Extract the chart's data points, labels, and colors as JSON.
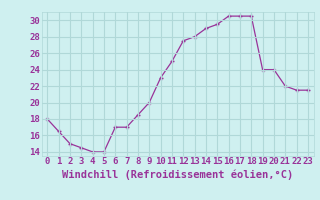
{
  "x": [
    0,
    1,
    2,
    3,
    4,
    5,
    6,
    7,
    8,
    9,
    10,
    11,
    12,
    13,
    14,
    15,
    16,
    17,
    18,
    19,
    20,
    21,
    22,
    23
  ],
  "y": [
    18,
    16.5,
    15,
    14.5,
    14,
    14,
    17,
    17,
    18.5,
    20,
    23,
    25,
    27.5,
    28,
    29,
    29.5,
    30.5,
    30.5,
    30.5,
    24,
    24,
    22,
    21.5,
    21.5
  ],
  "line_color": "#993399",
  "marker": "+",
  "bg_color": "#cff0f0",
  "xlabel": "Windchill (Refroidissement éolien,°C)",
  "xlim": [
    -0.5,
    23.5
  ],
  "ylim": [
    13.5,
    31
  ],
  "yticks": [
    14,
    16,
    18,
    20,
    22,
    24,
    26,
    28,
    30
  ],
  "xticks": [
    0,
    1,
    2,
    3,
    4,
    5,
    6,
    7,
    8,
    9,
    10,
    11,
    12,
    13,
    14,
    15,
    16,
    17,
    18,
    19,
    20,
    21,
    22,
    23
  ],
  "grid_color": "#b0d8d8",
  "tick_color": "#993399",
  "label_color": "#993399",
  "xlabel_fontsize": 7.5,
  "tick_fontsize": 6.5
}
